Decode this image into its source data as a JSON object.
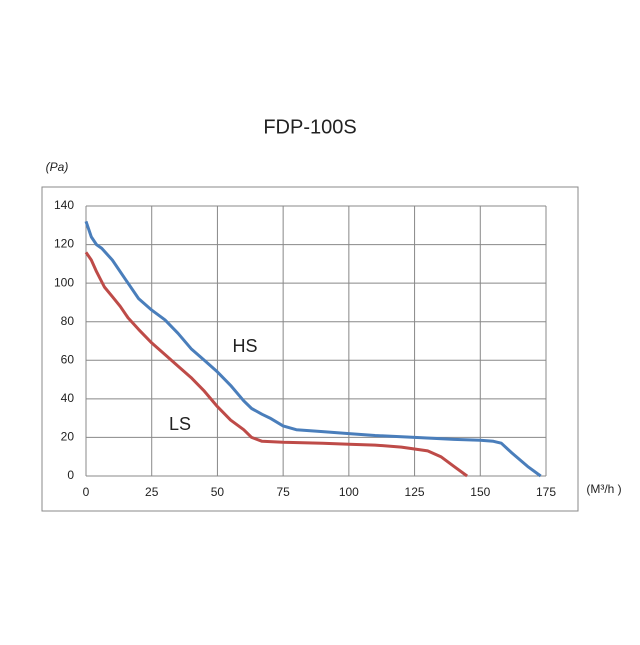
{
  "chart_data": {
    "type": "line",
    "title": "FDP-100S",
    "y_label": "(Pa)",
    "x_label": "(M³/h )",
    "xlim": [
      0,
      175
    ],
    "xticks": [
      0,
      25,
      50,
      75,
      100,
      125,
      150,
      175
    ],
    "ylim": [
      0,
      140
    ],
    "yticks": [
      0,
      20,
      40,
      60,
      80,
      100,
      120,
      140
    ],
    "grid": true,
    "series": [
      {
        "name": "HS",
        "color": "#4a7ebb",
        "x": [
          0,
          2,
          4,
          6,
          10,
          15,
          20,
          25,
          30,
          35,
          40,
          45,
          50,
          55,
          60,
          63,
          67,
          70,
          75,
          80,
          90,
          100,
          110,
          125,
          140,
          150,
          155,
          158,
          162,
          168,
          173
        ],
        "values": [
          132,
          124,
          120,
          118,
          112,
          102,
          92,
          86,
          81,
          74,
          66,
          60,
          54,
          47,
          39,
          35,
          32,
          30,
          26,
          24,
          23,
          22,
          21,
          20,
          19,
          18.5,
          18,
          17,
          12,
          5,
          0
        ]
      },
      {
        "name": "LS",
        "color": "#be4b48",
        "x": [
          0,
          2,
          4,
          7,
          10,
          13,
          16,
          20,
          25,
          30,
          35,
          40,
          45,
          50,
          55,
          60,
          63,
          67,
          75,
          90,
          100,
          110,
          120,
          130,
          135,
          140,
          145
        ],
        "values": [
          116,
          112,
          106,
          98,
          93,
          88,
          82,
          76,
          69,
          63,
          57,
          51,
          44,
          36,
          29,
          24,
          20,
          18,
          17.5,
          17,
          16.5,
          16,
          15,
          13,
          10,
          5,
          0
        ]
      }
    ]
  }
}
